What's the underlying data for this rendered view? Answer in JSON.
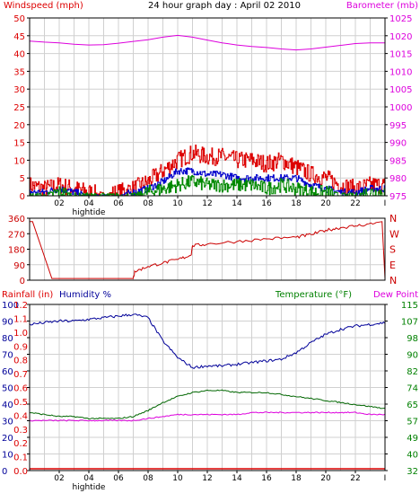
{
  "header": {
    "title": "24 hour graph day : April 02 2010",
    "left_label": "Windspeed (mph)",
    "right_label": "Barometer (mb)"
  },
  "colors": {
    "frame": "#000000",
    "grid": "#d0d0d0",
    "wind": "#dd0000",
    "wind_avg": "#0000cc",
    "gust_low": "#008800",
    "barometer": "#dd00dd",
    "direction": "#cc0000",
    "rain": "#dd0000",
    "humidity": "#000099",
    "temperature": "#006600",
    "dewpoint": "#dd00dd",
    "temp_axis": "#008000"
  },
  "x_axis": {
    "tick_labels": [
      "02",
      "04",
      "06",
      "08",
      "10",
      "12",
      "14",
      "16",
      "18",
      "20",
      "22"
    ],
    "end_marker": "I",
    "event_label": "hightide"
  },
  "chart_data": [
    {
      "type": "line",
      "title": "24 hour graph day : April 02 2010",
      "ylabel": "Windspeed (mph)",
      "y2label": "Barometer (mb)",
      "ylim": [
        0,
        50
      ],
      "y2lim": [
        975,
        1025
      ],
      "y_ticks": [
        "0",
        "5",
        "10",
        "15",
        "20",
        "25",
        "30",
        "35",
        "40",
        "45",
        "50"
      ],
      "y2_ticks": [
        "975",
        "980",
        "985",
        "990",
        "995",
        "1000",
        "1005",
        "1010",
        "1015",
        "1020",
        "1025"
      ],
      "x": [
        0,
        1,
        2,
        3,
        4,
        5,
        6,
        7,
        8,
        9,
        10,
        11,
        12,
        13,
        14,
        15,
        16,
        17,
        18,
        19,
        20,
        21,
        22,
        23,
        24
      ],
      "series": [
        {
          "values": [
            1018.5,
            1018.2,
            1018.0,
            1017.6,
            1017.4,
            1017.5,
            1017.9,
            1018.4,
            1018.9,
            1019.6,
            1020.1,
            1019.6,
            1018.8,
            1018.0,
            1017.4,
            1017.0,
            1016.7,
            1016.3,
            1016.0,
            1016.3,
            1016.8,
            1017.3,
            1017.8,
            1018.0,
            1018.0
          ]
        },
        {
          "values": [
            3,
            2,
            3,
            2,
            1,
            0,
            1,
            2,
            4,
            7,
            10,
            12,
            11,
            11,
            10,
            10,
            9,
            10,
            8,
            6,
            5,
            3,
            2,
            3,
            3
          ]
        },
        {
          "values": [
            1,
            1,
            2,
            1,
            0,
            0,
            0,
            1,
            2,
            4,
            7,
            7,
            6,
            6,
            5,
            5,
            5,
            5,
            5,
            3,
            2,
            1,
            1,
            2,
            2
          ]
        },
        {
          "values": [
            0,
            0,
            1,
            0,
            0,
            0,
            0,
            0,
            1,
            2,
            3,
            4,
            3,
            3,
            3,
            3,
            2,
            3,
            2,
            1,
            1,
            0,
            0,
            1,
            1
          ]
        }
      ]
    },
    {
      "type": "line",
      "y_ticks": [
        "0",
        "90",
        "180",
        "270",
        "360"
      ],
      "y2_ticks": [
        "N",
        "W",
        "S",
        "E",
        "N"
      ],
      "ylim": [
        0,
        360
      ],
      "x": [
        0,
        0.1,
        0.2,
        1.5,
        3.5,
        5.5,
        7.0,
        7.1,
        8.0,
        9.0,
        10.0,
        10.9,
        11.0,
        12.0,
        14.0,
        16.0,
        18.0,
        19.0,
        20.0,
        21.0,
        22.0,
        23.3,
        23.4,
        23.8,
        24.0
      ],
      "values": [
        340,
        340,
        340,
        10,
        10,
        10,
        10,
        50,
        80,
        100,
        120,
        145,
        200,
        210,
        225,
        240,
        250,
        265,
        290,
        305,
        315,
        330,
        335,
        340,
        10
      ]
    },
    {
      "type": "line",
      "ylabel": "Rainfall (in)",
      "y_extra_label": "Humidity %",
      "y2label": "Temperature (°F)",
      "y3label": "Dew Point",
      "rain_ticks": [
        "0.0",
        "0.1",
        "0.2",
        "0.3",
        "0.4",
        "0.5",
        "0.6",
        "0.7",
        "0.8",
        "0.9",
        "1.0",
        "1.1",
        "1.2"
      ],
      "humidity_ticks": [
        "0",
        "10",
        "20",
        "30",
        "40",
        "50",
        "60",
        "70",
        "80",
        "90",
        "100"
      ],
      "temp_ticks": [
        "32",
        "40",
        "49",
        "57",
        "65",
        "74",
        "82",
        "90",
        "98",
        "107",
        "115"
      ],
      "humidity_ylim": [
        0,
        100
      ],
      "temp_ylim": [
        32,
        115
      ],
      "x": [
        0,
        1,
        2,
        3,
        4,
        5,
        6,
        7,
        8,
        9,
        10,
        11,
        12,
        13,
        14,
        15,
        16,
        17,
        18,
        19,
        20,
        21,
        22,
        23,
        24
      ],
      "series": [
        {
          "values": [
            88,
            89,
            90,
            90,
            91,
            92,
            93,
            94,
            92,
            78,
            68,
            62,
            63,
            63,
            64,
            65,
            66,
            67,
            71,
            77,
            82,
            85,
            87,
            88,
            89
          ]
        },
        {
          "values": [
            0,
            0,
            0,
            0,
            0,
            0,
            0,
            0,
            0,
            0,
            0,
            0,
            0,
            0,
            0,
            0,
            0,
            0,
            0,
            0,
            0,
            0,
            0,
            0,
            0
          ]
        },
        {
          "values": [
            61,
            60,
            59,
            59,
            58,
            58,
            58,
            59,
            62,
            66,
            69,
            71,
            72,
            72,
            71,
            71,
            71,
            70,
            69,
            68,
            67,
            66,
            65,
            64,
            63
          ]
        },
        {
          "values": [
            57,
            57,
            57,
            57,
            57,
            57,
            57,
            57,
            58,
            59,
            60,
            60,
            60,
            60,
            60,
            61,
            61,
            61,
            61,
            61,
            61,
            61,
            61,
            60,
            60
          ]
        }
      ]
    }
  ]
}
